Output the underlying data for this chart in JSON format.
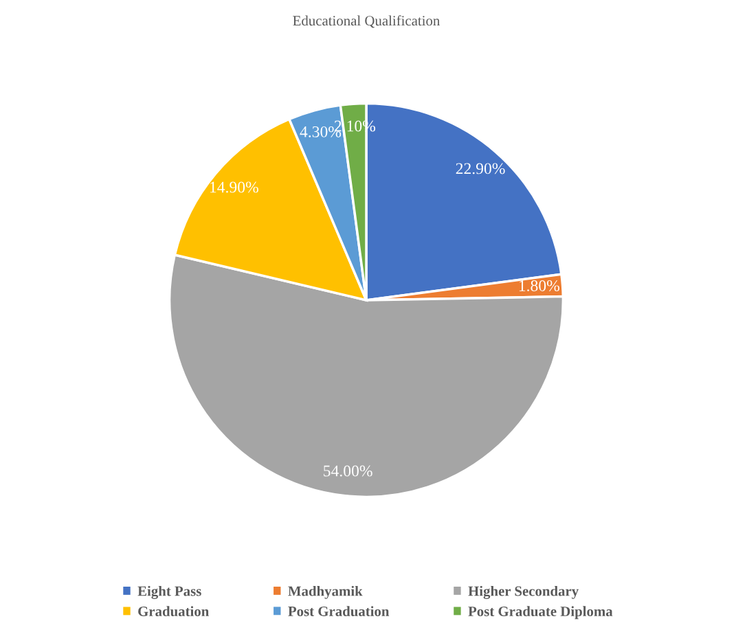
{
  "chart_data": {
    "type": "pie",
    "title": "Educational Qualification",
    "categories": [
      "Eight Pass",
      "Madhyamik",
      "Higher Secondary",
      "Graduation",
      "Post Graduation",
      "Post Graduate Diploma"
    ],
    "values": [
      22.9,
      1.8,
      54.0,
      14.9,
      4.3,
      2.1
    ],
    "value_labels": [
      "22.90%",
      "1.80%",
      "54.00%",
      "14.90%",
      "4.30%",
      "2.10%"
    ],
    "colors": [
      "#4472c4",
      "#ed7d31",
      "#a5a5a5",
      "#ffc000",
      "#5b9bd5",
      "#70ad47"
    ],
    "legend": "bottom"
  }
}
